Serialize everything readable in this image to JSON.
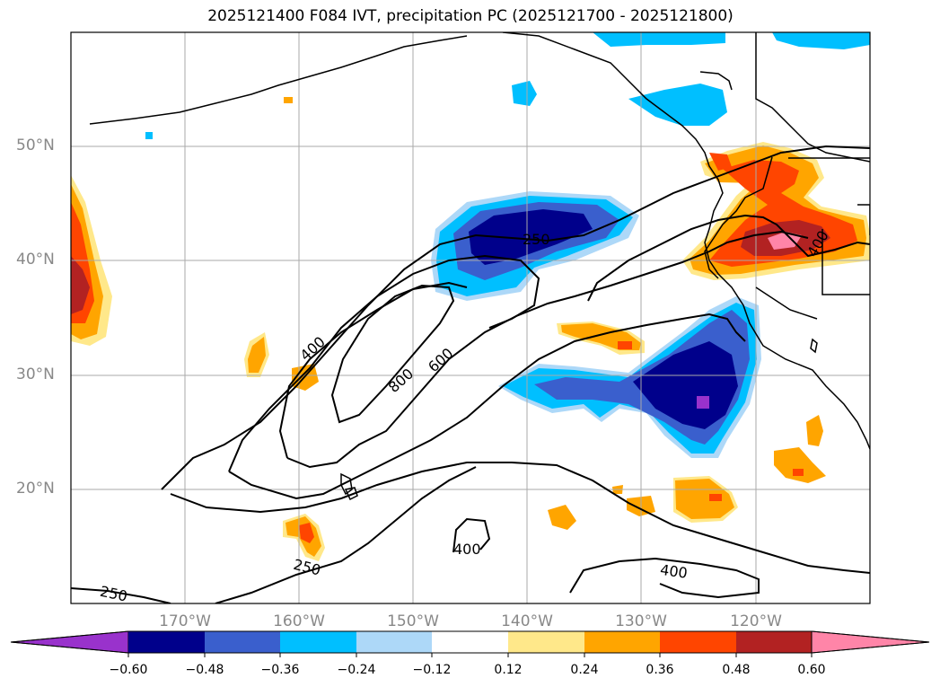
{
  "title": "2025121400 F084 IVT, precipitation PC (2025121700 - 2025121800)",
  "map": {
    "lat_labels": [
      "50°N",
      "40°N",
      "30°N",
      "20°N"
    ],
    "lon_labels": [
      "170°W",
      "160°W",
      "150°W",
      "140°W",
      "130°W",
      "120°W"
    ],
    "contour_labels": [
      "250",
      "400",
      "800",
      "600",
      "400",
      "400",
      "250",
      "250",
      "400",
      "400"
    ]
  },
  "colorbar": {
    "labels": [
      "−0.60",
      "−0.48",
      "−0.36",
      "−0.24",
      "−0.12",
      "0.12",
      "0.24",
      "0.36",
      "0.48",
      "0.60"
    ],
    "colors": [
      "#9932cc",
      "#00008b",
      "#3a5fcd",
      "#00bfff",
      "#add8f8",
      "#ffffff",
      "#ffe88a",
      "#ffa500",
      "#ff4500",
      "#b22222",
      "#ff85a8"
    ]
  }
}
